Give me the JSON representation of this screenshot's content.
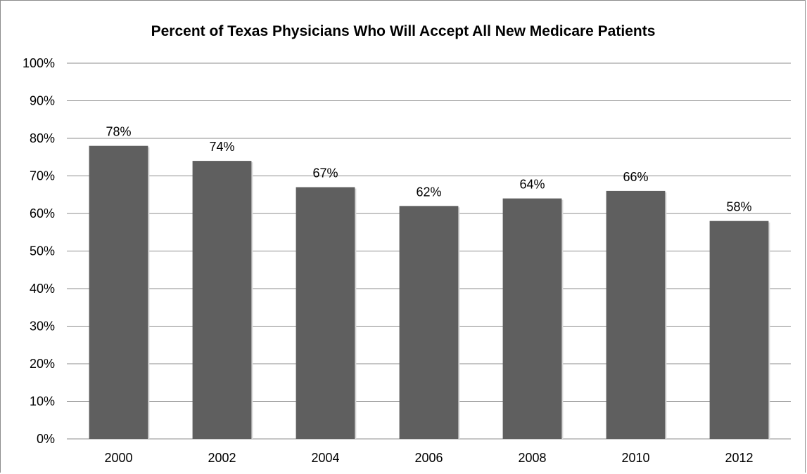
{
  "chart_data": {
    "type": "bar",
    "title": "Percent of Texas Physicians Who Will Accept All New Medicare Patients",
    "xlabel": "",
    "ylabel": "",
    "categories": [
      "2000",
      "2002",
      "2004",
      "2006",
      "2008",
      "2010",
      "2012"
    ],
    "values": [
      78,
      74,
      67,
      62,
      64,
      66,
      58
    ],
    "data_labels": [
      "78%",
      "74%",
      "67%",
      "62%",
      "64%",
      "66%",
      "58%"
    ],
    "ylim": [
      0,
      100
    ],
    "y_ticks": [
      {
        "value": 0,
        "label": "0%"
      },
      {
        "value": 10,
        "label": "10%"
      },
      {
        "value": 20,
        "label": "20%"
      },
      {
        "value": 30,
        "label": "30%"
      },
      {
        "value": 40,
        "label": "40%"
      },
      {
        "value": 50,
        "label": "50%"
      },
      {
        "value": 60,
        "label": "60%"
      },
      {
        "value": 70,
        "label": "70%"
      },
      {
        "value": 80,
        "label": "80%"
      },
      {
        "value": 90,
        "label": "90%"
      },
      {
        "value": 100,
        "label": "100%"
      }
    ],
    "grid": true,
    "legend": "none",
    "bar_color": "#5f5f5f",
    "grid_color": "#8c8c8c"
  }
}
